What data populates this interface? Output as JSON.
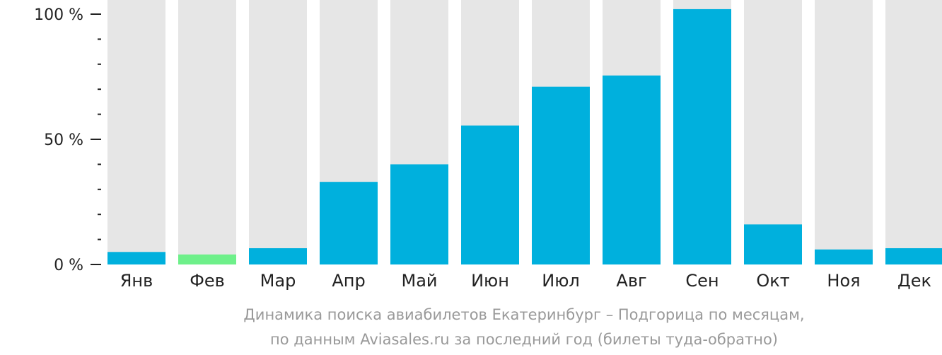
{
  "chart_data": {
    "type": "bar",
    "categories": [
      "Янв",
      "Фев",
      "Мар",
      "Апр",
      "Май",
      "Июн",
      "Июл",
      "Авг",
      "Сен",
      "Окт",
      "Ноя",
      "Дек"
    ],
    "values": [
      5,
      4,
      6.5,
      33,
      40,
      55.5,
      71,
      75.5,
      102,
      16,
      6,
      6.5
    ],
    "highlight_index": 1,
    "ylim": [
      0,
      100
    ],
    "yticks": [
      "0 %",
      "50 %",
      "100 %"
    ],
    "ytick_values": [
      0,
      50,
      100
    ],
    "minor_tick_step": 10,
    "grid": false,
    "colors": {
      "bar": "#00b0dd",
      "highlight": "#6ef08a",
      "track": "#e6e6e6",
      "axis": "#222222"
    },
    "caption_lines": [
      "Динамика поиска авиабилетов Екатеринбург – Подгорица по месяцам,",
      "по данным Aviasales.ru за последний год (билеты туда-обратно)"
    ]
  }
}
